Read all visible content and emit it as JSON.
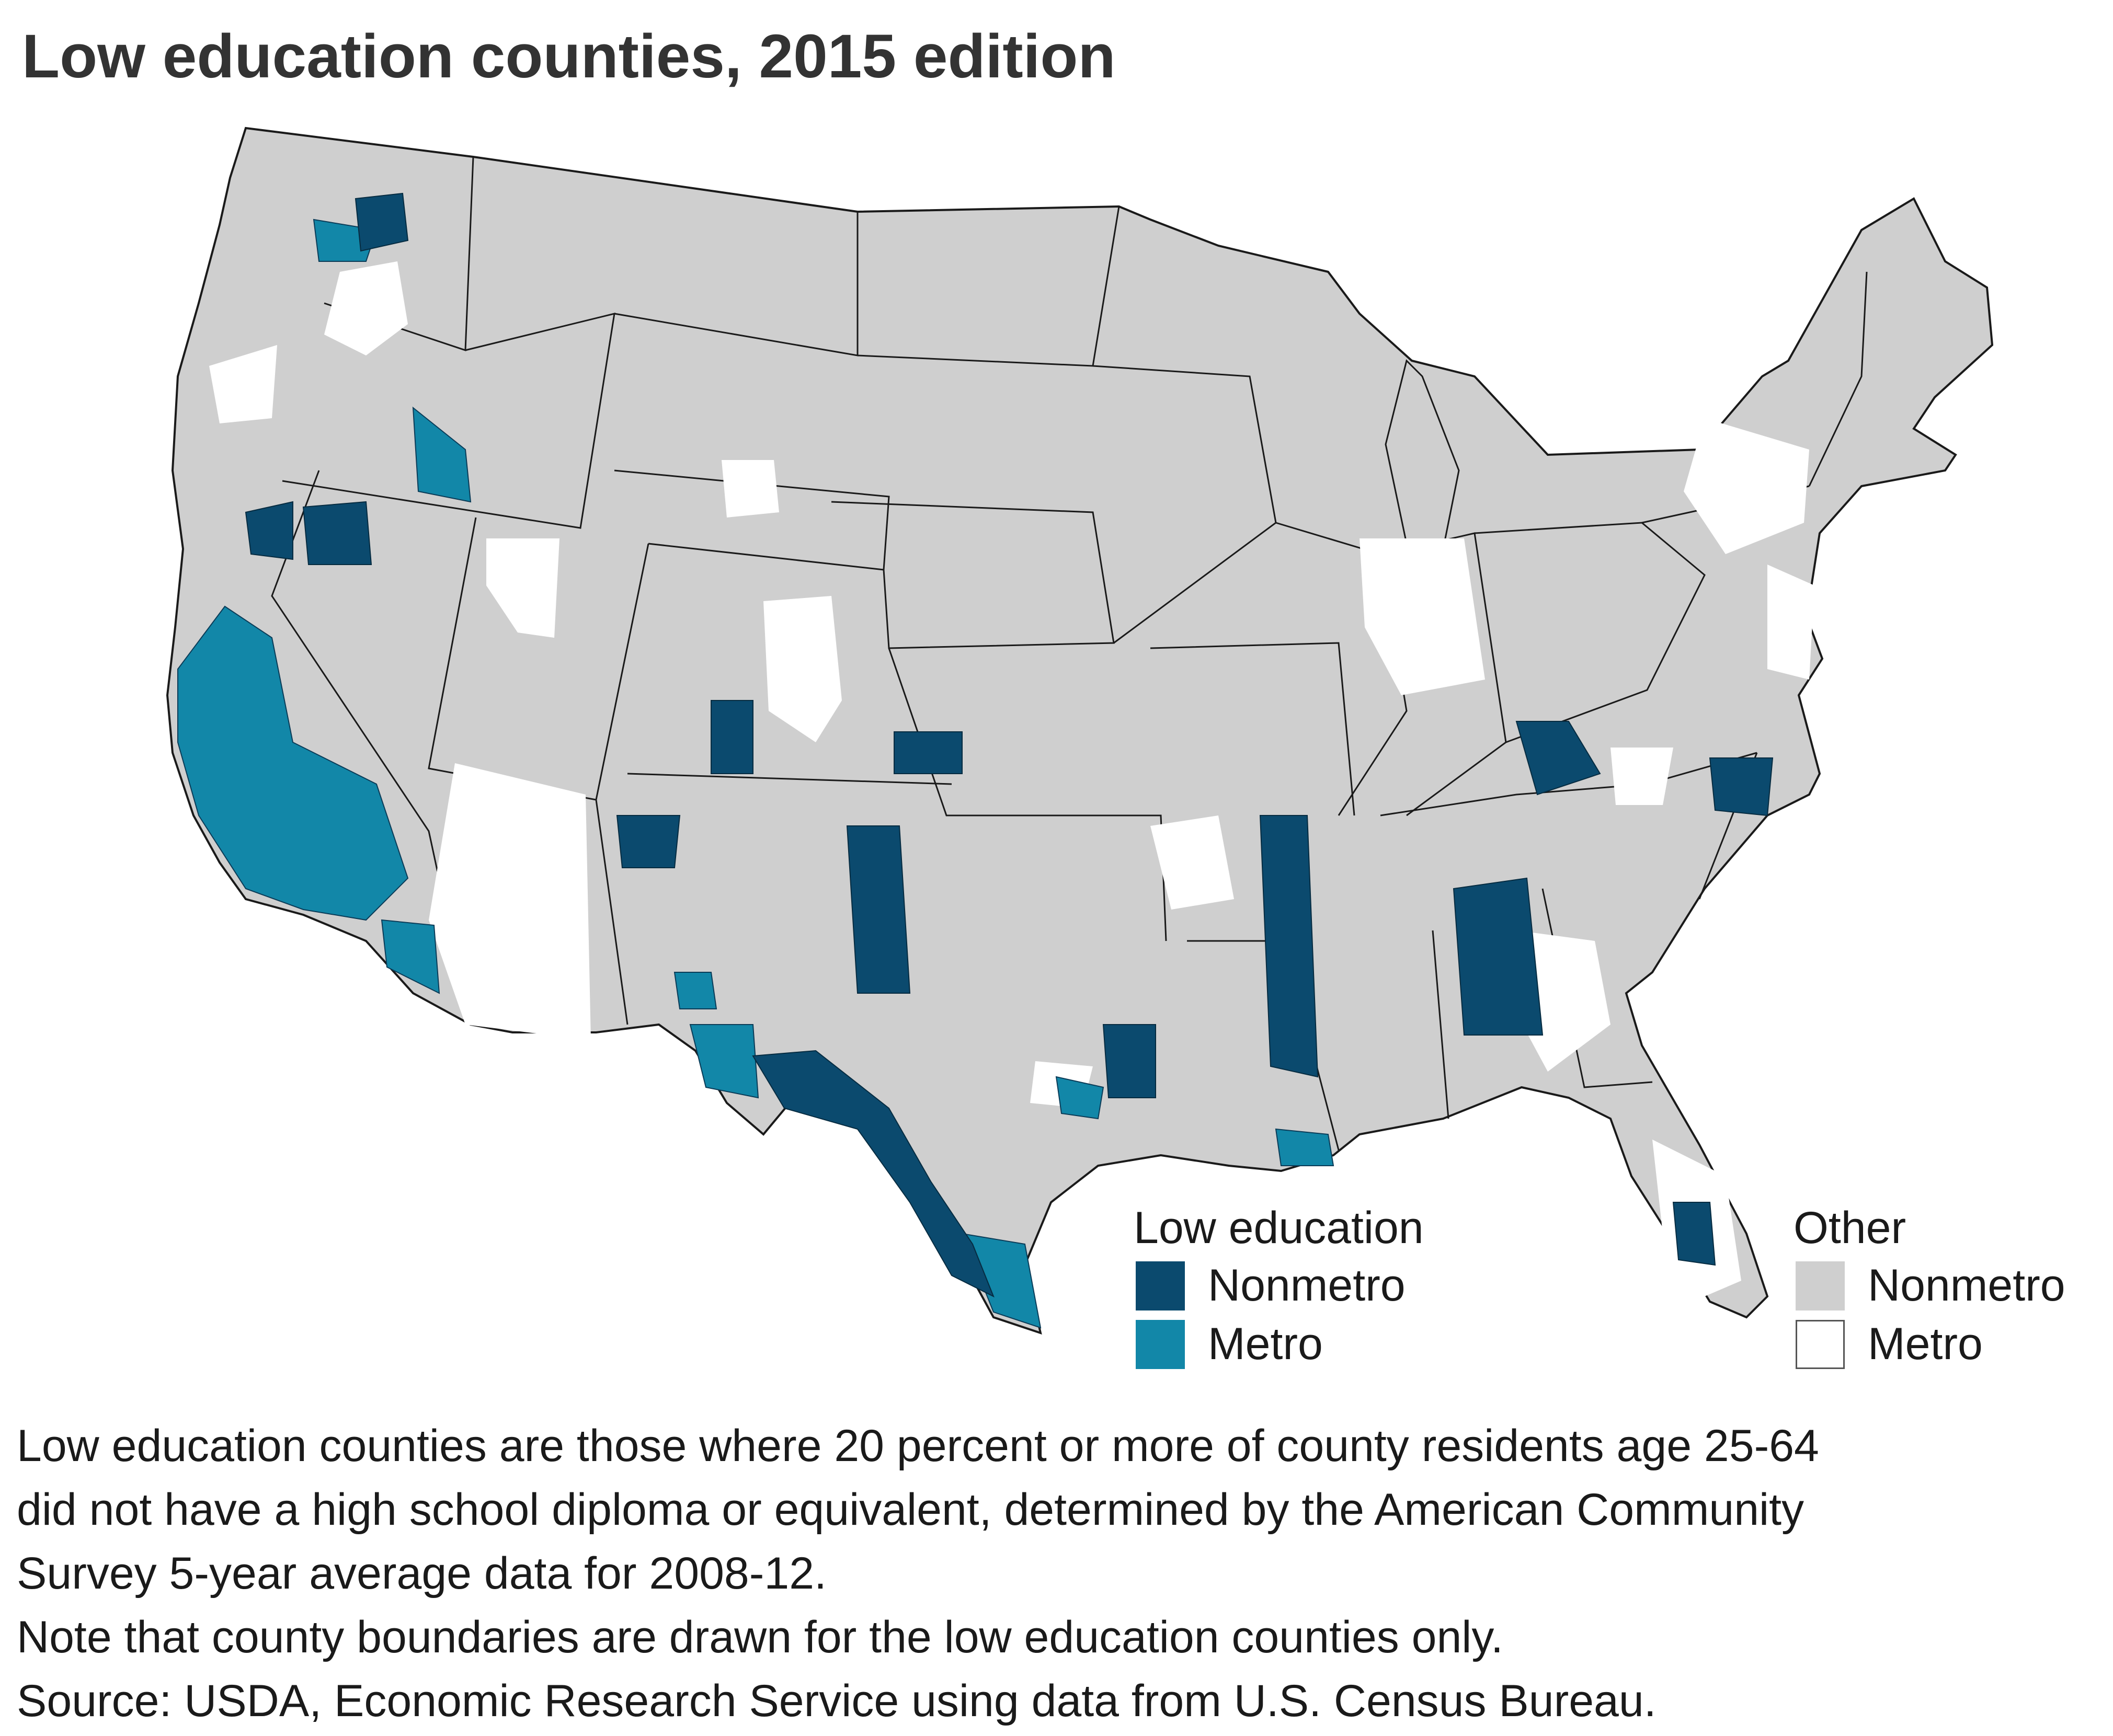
{
  "title": "Low education counties, 2015 edition",
  "colors": {
    "low_nonmetro": "#0b4a6e",
    "low_metro": "#1287a8",
    "other_nonmetro": "#cfcfcf",
    "other_metro": "#ffffff",
    "boundary": "#1a1a1a"
  },
  "legend": {
    "low_education": {
      "heading": "Low education",
      "items": [
        {
          "label": "Nonmetro",
          "color": "#0b4a6e"
        },
        {
          "label": "Metro",
          "color": "#1287a8"
        }
      ]
    },
    "other": {
      "heading": "Other",
      "items": [
        {
          "label": "Nonmetro",
          "color": "#cfcfcf"
        },
        {
          "label": "Metro",
          "color": "#ffffff"
        }
      ]
    }
  },
  "notes": [
    "Low education counties are those where 20 percent or more of county residents age 25-64",
    "did not have a high school diploma or equivalent, determined by the American Community",
    "Survey 5-year average data for 2008-12.",
    "Note that county boundaries are drawn for the low education counties only.",
    "Source: USDA, Economic Research Service using data from U.S. Census Bureau."
  ]
}
